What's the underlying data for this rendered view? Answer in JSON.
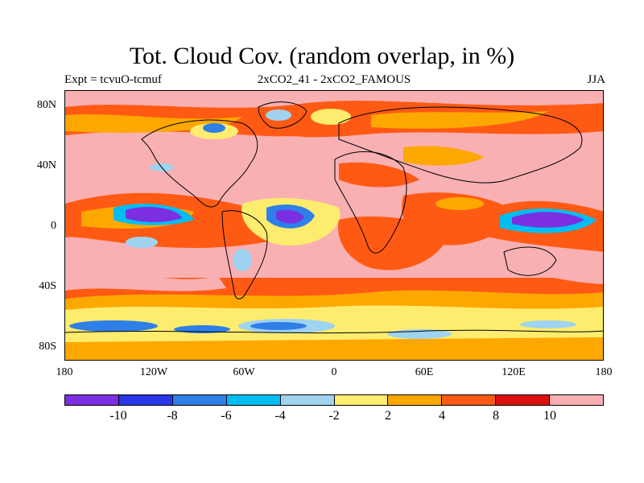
{
  "title": "Tot. Cloud Cov. (random overlap, in %)",
  "expt_label": "Expt = tcvuO-tcmuf",
  "comparison_label": "2xCO2_41 - 2xCO2_FAMOUS",
  "season_label": "JJA",
  "lat_labels": [
    "80N",
    "40N",
    "0",
    "40S",
    "80S"
  ],
  "lon_labels": [
    "180",
    "120W",
    "60W",
    "0",
    "60E",
    "120E",
    "180"
  ],
  "colorbar": {
    "colors": [
      "#7b2fe0",
      "#2a36e8",
      "#2f7fe8",
      "#00bdf2",
      "#9fd3f0",
      "#fdec6e",
      "#fda800",
      "#ff5a14",
      "#de0f0f",
      "#f9b0b3"
    ],
    "labels": [
      "-10",
      "-8",
      "-6",
      "-4",
      "-2",
      "2",
      "4",
      "8",
      "10"
    ]
  }
}
